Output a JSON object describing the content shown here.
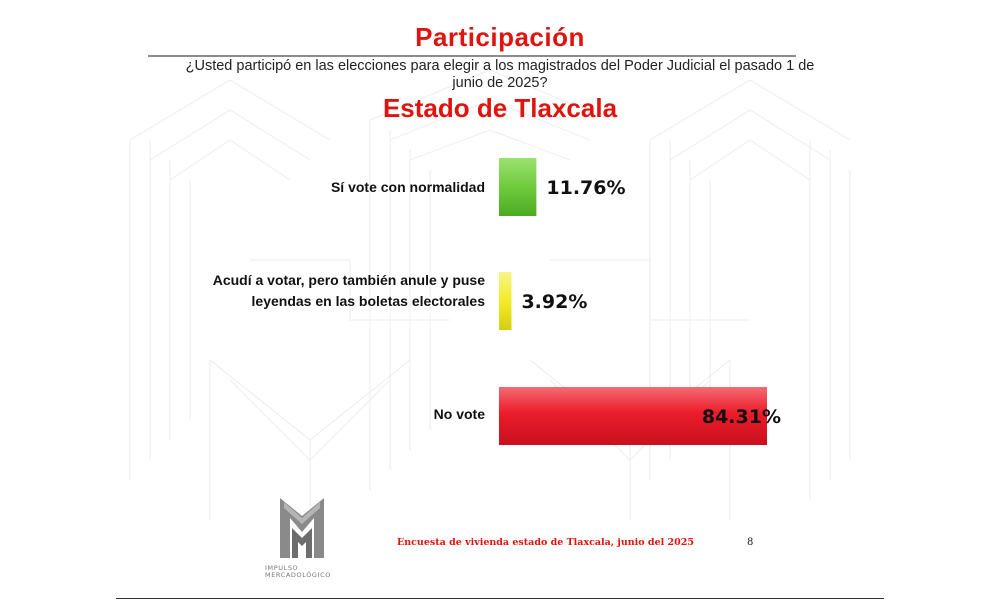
{
  "header": {
    "title": "Participación",
    "question": "¿Usted participó en las elecciones para elegir a los magistrados del Poder Judicial el pasado 1 de junio de 2025?",
    "subtitle": "Estado de Tlaxcala"
  },
  "chart_data": {
    "type": "bar",
    "orientation": "horizontal",
    "categories": [
      "Sí vote con normalidad",
      "Acudí a votar, pero también  anule y puse leyendas en las boletas electorales",
      "No vote"
    ],
    "values": [
      11.76,
      3.92,
      84.31
    ],
    "value_labels": [
      "11.76%",
      "3.92%",
      "84.31%"
    ],
    "colors": [
      "#6fca3d",
      "#f2ec2a",
      "#ec1c2b"
    ],
    "xlim": [
      0,
      100
    ],
    "legend": "none",
    "grid": false
  },
  "footer": {
    "source": "Encuesta de vivienda estado de Tlaxcala, junio   del 2025",
    "page_number": "8",
    "logo_text_line1": "IMPULSO",
    "logo_text_line2": "MERCADOLÓGICO"
  }
}
